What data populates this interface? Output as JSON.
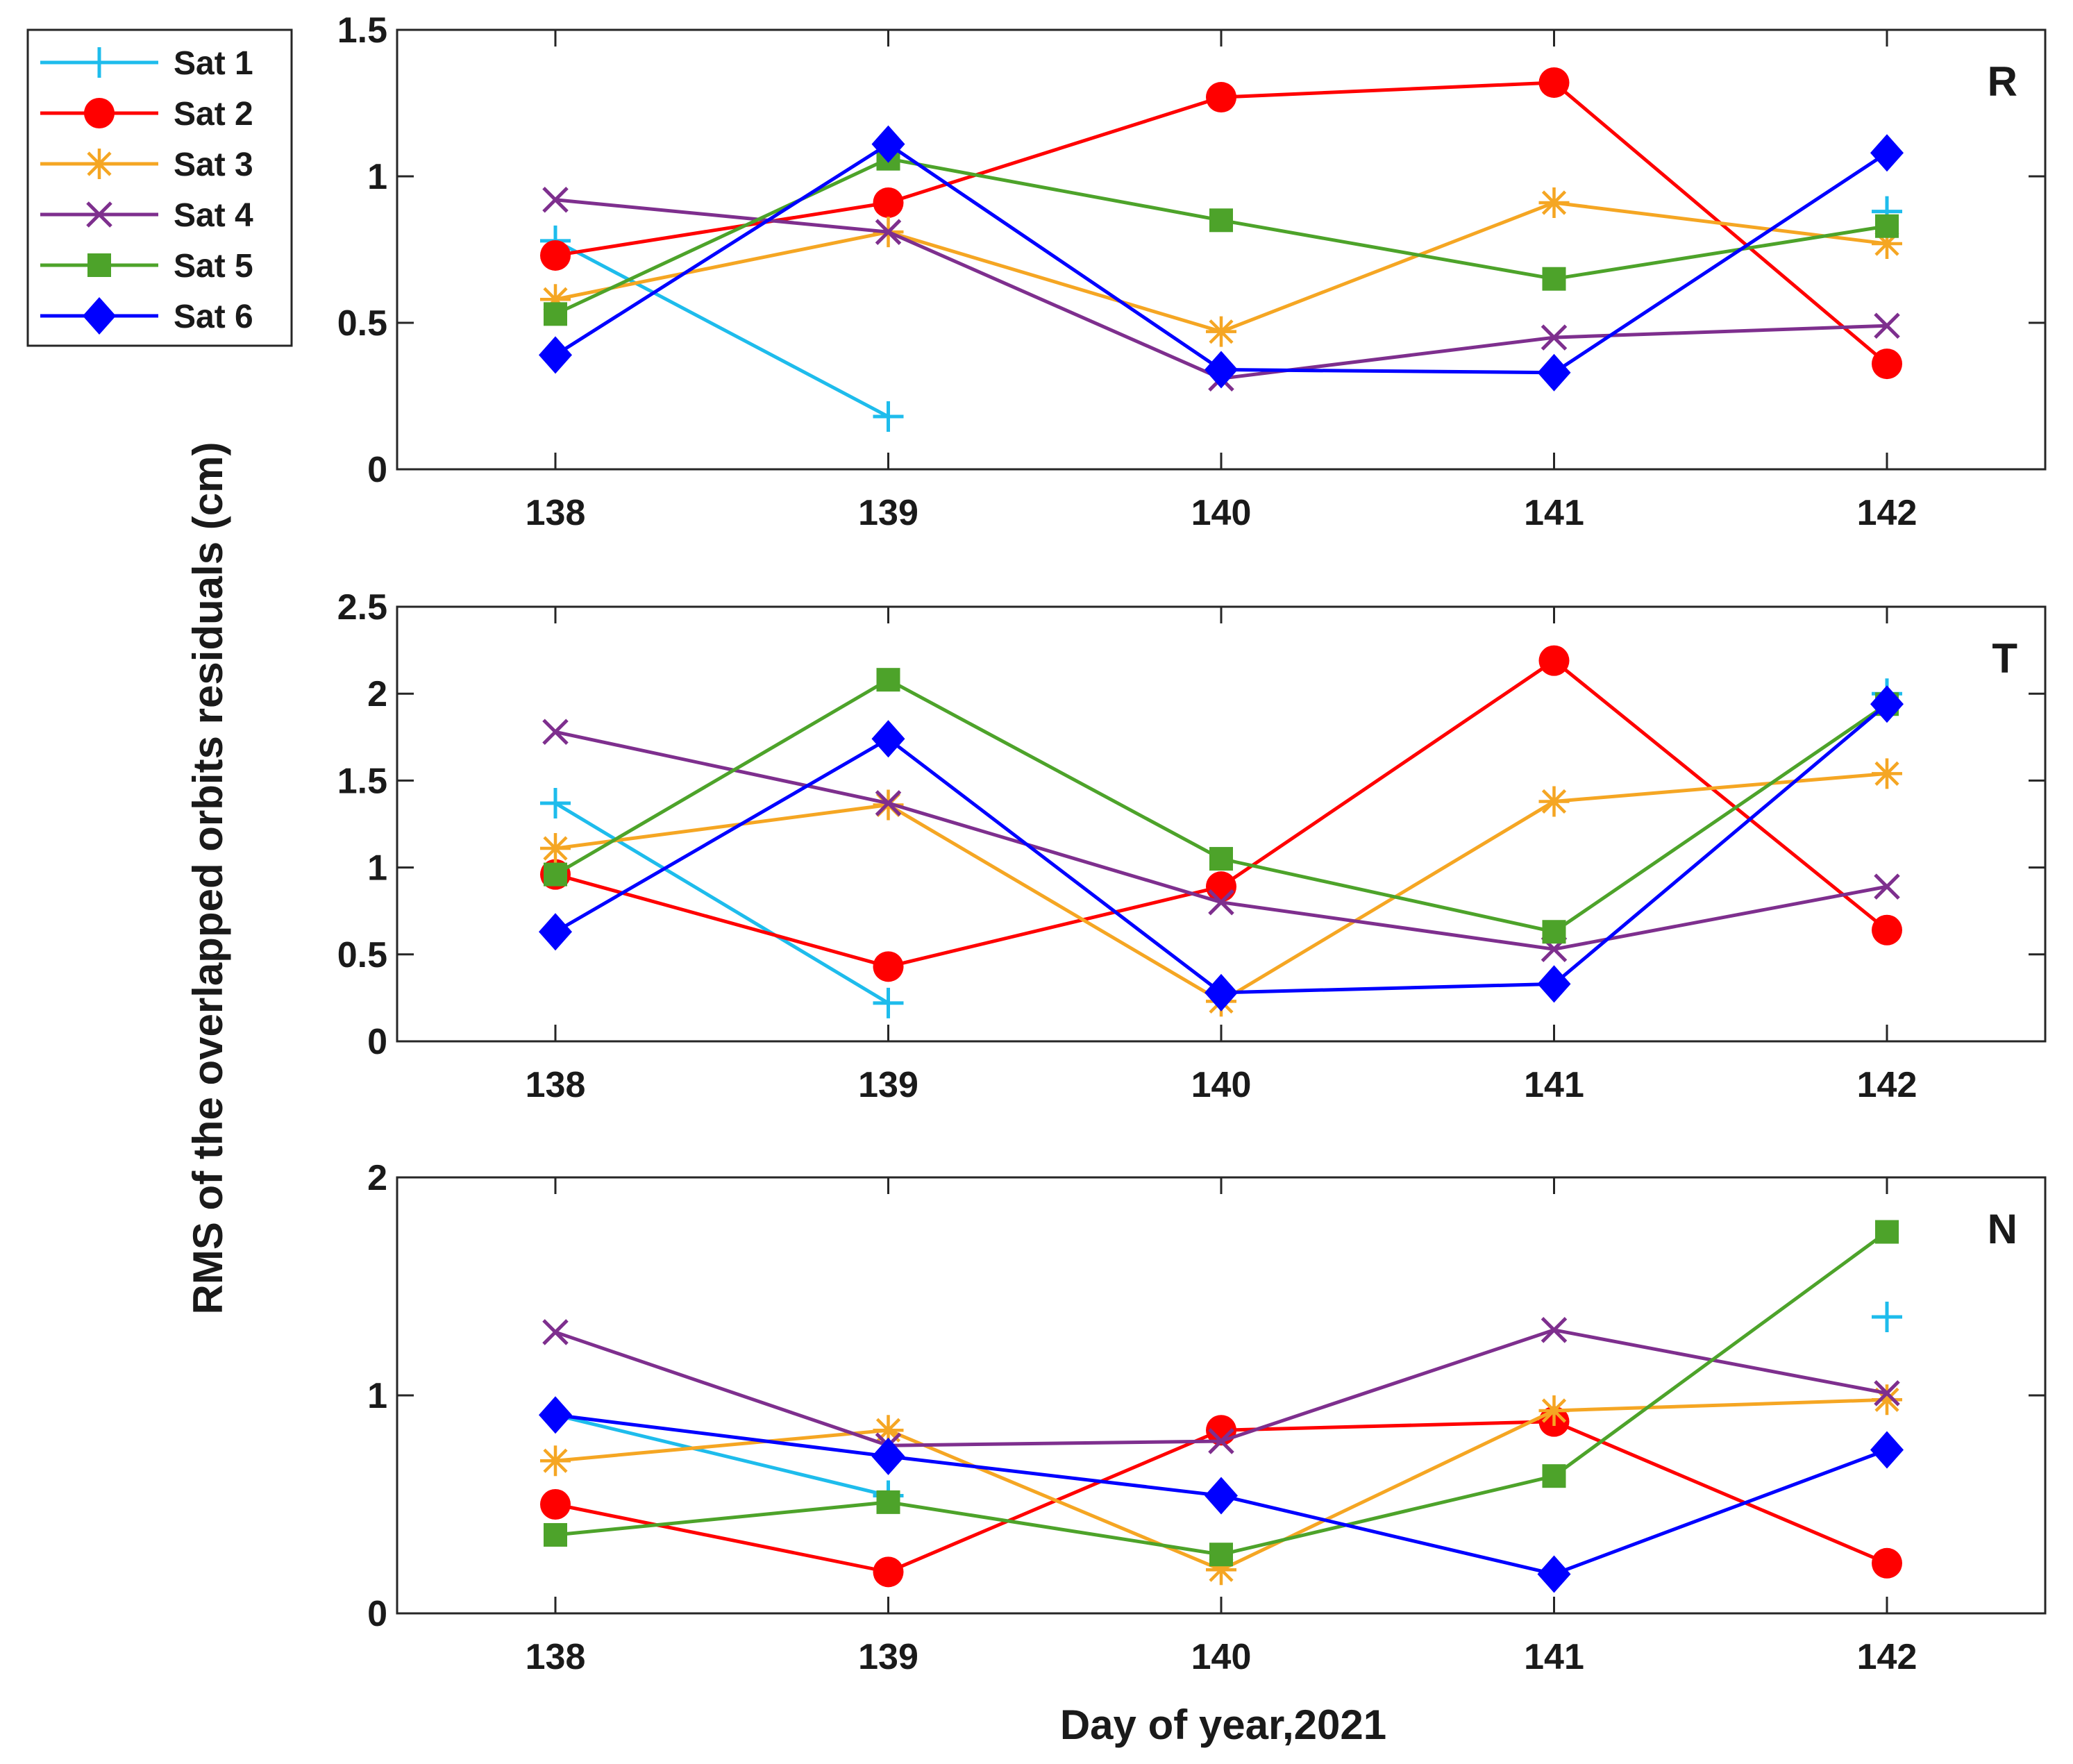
{
  "chart_data": {
    "type": "line",
    "ylabel": "RMS of the overlapped orbits residuals (cm)",
    "xlabel": "Day of year,2021",
    "x": [
      138,
      139,
      140,
      141,
      142
    ],
    "series_meta": [
      {
        "name": "Sat 1",
        "color": "#1ebcec",
        "marker": "plus"
      },
      {
        "name": "Sat 2",
        "color": "#ff0000",
        "marker": "circle"
      },
      {
        "name": "Sat 3",
        "color": "#f5a623",
        "marker": "asterisk"
      },
      {
        "name": "Sat 4",
        "color": "#7e2f8e",
        "marker": "x"
      },
      {
        "name": "Sat 5",
        "color": "#4da32a",
        "marker": "square"
      },
      {
        "name": "Sat 6",
        "color": "#0000ff",
        "marker": "diamond"
      }
    ],
    "panels": [
      {
        "label": "R",
        "ylim": [
          0,
          1.5
        ],
        "yticks": [
          0,
          0.5,
          1,
          1.5
        ],
        "ytick_labels": [
          "0",
          "0.5",
          "1",
          "1.5"
        ],
        "series": [
          {
            "name": "Sat 1",
            "values": [
              0.78,
              0.18,
              null,
              null,
              0.88
            ]
          },
          {
            "name": "Sat 2",
            "values": [
              0.73,
              0.91,
              1.27,
              1.32,
              0.36
            ]
          },
          {
            "name": "Sat 3",
            "values": [
              0.58,
              0.81,
              0.47,
              0.91,
              0.77
            ]
          },
          {
            "name": "Sat 4",
            "values": [
              0.92,
              0.81,
              0.31,
              0.45,
              0.49
            ]
          },
          {
            "name": "Sat 5",
            "values": [
              0.53,
              1.06,
              0.85,
              0.65,
              0.83
            ]
          },
          {
            "name": "Sat 6",
            "values": [
              0.39,
              1.11,
              0.34,
              0.33,
              1.08
            ]
          }
        ]
      },
      {
        "label": "T",
        "ylim": [
          0,
          2.5
        ],
        "yticks": [
          0,
          0.5,
          1,
          1.5,
          2,
          2.5
        ],
        "ytick_labels": [
          "0",
          "0.5",
          "1",
          "1.5",
          "2",
          "2.5"
        ],
        "series": [
          {
            "name": "Sat 1",
            "values": [
              1.37,
              0.22,
              null,
              null,
              2.0
            ]
          },
          {
            "name": "Sat 2",
            "values": [
              0.96,
              0.43,
              0.89,
              2.19,
              0.64
            ]
          },
          {
            "name": "Sat 3",
            "values": [
              1.11,
              1.36,
              0.23,
              1.38,
              1.54
            ]
          },
          {
            "name": "Sat 4",
            "values": [
              1.78,
              1.37,
              0.8,
              0.53,
              0.89
            ]
          },
          {
            "name": "Sat 5",
            "values": [
              0.96,
              2.08,
              1.05,
              0.63,
              1.94
            ]
          },
          {
            "name": "Sat 6",
            "values": [
              0.63,
              1.74,
              0.28,
              0.33,
              1.94
            ]
          }
        ]
      },
      {
        "label": "N",
        "ylim": [
          0,
          2
        ],
        "yticks": [
          0,
          1,
          2
        ],
        "ytick_labels": [
          "0",
          "1",
          "2"
        ],
        "series": [
          {
            "name": "Sat 1",
            "values": [
              0.91,
              0.54,
              null,
              null,
              1.36
            ]
          },
          {
            "name": "Sat 2",
            "values": [
              0.5,
              0.19,
              0.84,
              0.88,
              0.23
            ]
          },
          {
            "name": "Sat 3",
            "values": [
              0.7,
              0.84,
              0.2,
              0.93,
              0.98
            ]
          },
          {
            "name": "Sat 4",
            "values": [
              1.29,
              0.77,
              0.79,
              1.3,
              1.01
            ]
          },
          {
            "name": "Sat 5",
            "values": [
              0.36,
              0.51,
              0.27,
              0.63,
              1.75
            ]
          },
          {
            "name": "Sat 6",
            "values": [
              0.91,
              0.72,
              0.54,
              0.18,
              0.75
            ]
          }
        ]
      }
    ],
    "legend": [
      "Sat 1",
      "Sat 2",
      "Sat 3",
      "Sat 4",
      "Sat 5",
      "Sat 6"
    ],
    "legend_position": "top-left",
    "grid": false
  }
}
